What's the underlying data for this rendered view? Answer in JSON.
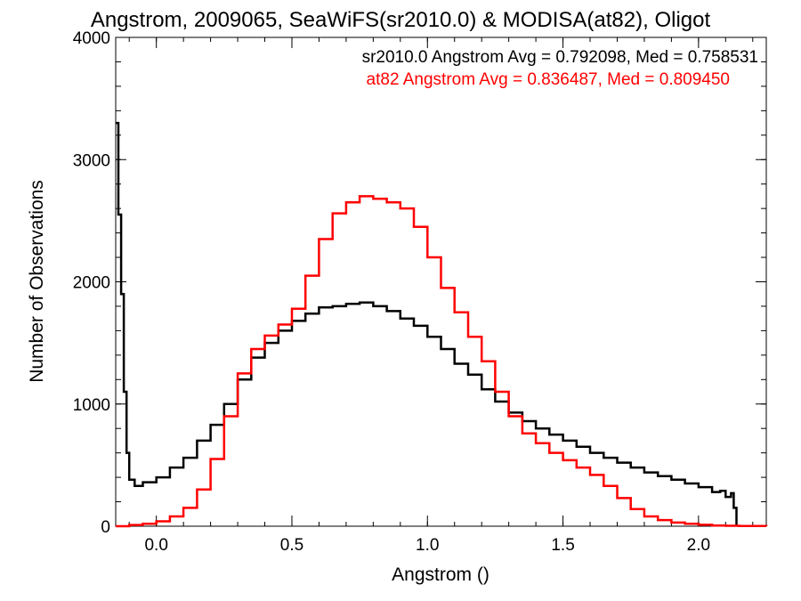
{
  "chart_data": {
    "type": "line",
    "title": "Angstrom, 2009065, SeaWiFS(sr2010.0) & MODISA(at82), Oligot",
    "xlabel": "Angstrom ()",
    "ylabel": "Number of Observations",
    "xlim": [
      -0.15,
      2.25
    ],
    "ylim": [
      0,
      4000
    ],
    "x_ticks": [
      {
        "value": 0.0,
        "label": "0.0"
      },
      {
        "value": 0.5,
        "label": "0.5"
      },
      {
        "value": 1.0,
        "label": "1.0"
      },
      {
        "value": 1.5,
        "label": "1.5"
      },
      {
        "value": 2.0,
        "label": "2.0"
      }
    ],
    "y_ticks": [
      {
        "value": 0,
        "label": "0"
      },
      {
        "value": 1000,
        "label": "1000"
      },
      {
        "value": 2000,
        "label": "2000"
      },
      {
        "value": 3000,
        "label": "3000"
      },
      {
        "value": 4000,
        "label": "4000"
      }
    ],
    "annotations": [
      {
        "text": "sr2010.0 Angstrom Avg = 0.792098, Med = 0.758531",
        "color": "#000000"
      },
      {
        "text": "at82 Angstrom Avg = 0.836487, Med = 0.809450",
        "color": "#ff0000"
      }
    ],
    "grid": false,
    "series": [
      {
        "color": "#000000",
        "x": [
          -0.15,
          -0.14,
          -0.13,
          -0.12,
          -0.11,
          -0.1,
          -0.08,
          -0.05,
          0.0,
          0.05,
          0.1,
          0.15,
          0.2,
          0.25,
          0.3,
          0.35,
          0.4,
          0.45,
          0.5,
          0.55,
          0.6,
          0.65,
          0.7,
          0.75,
          0.8,
          0.85,
          0.9,
          0.95,
          1.0,
          1.05,
          1.1,
          1.15,
          1.2,
          1.25,
          1.3,
          1.35,
          1.4,
          1.45,
          1.5,
          1.55,
          1.6,
          1.65,
          1.7,
          1.75,
          1.8,
          1.85,
          1.9,
          1.95,
          2.0,
          2.05,
          2.08,
          2.1,
          2.12,
          2.13,
          2.14
        ],
        "y": [
          3300,
          2550,
          1900,
          1100,
          600,
          380,
          330,
          360,
          400,
          480,
          560,
          700,
          830,
          1000,
          1200,
          1380,
          1500,
          1600,
          1680,
          1740,
          1790,
          1800,
          1820,
          1830,
          1800,
          1760,
          1700,
          1640,
          1550,
          1450,
          1330,
          1240,
          1120,
          1020,
          930,
          860,
          800,
          750,
          700,
          650,
          600,
          560,
          520,
          480,
          440,
          410,
          380,
          350,
          320,
          280,
          290,
          240,
          270,
          150,
          0
        ]
      },
      {
        "color": "#ff0000",
        "x": [
          -0.15,
          -0.1,
          -0.05,
          0.0,
          0.05,
          0.1,
          0.15,
          0.2,
          0.25,
          0.3,
          0.35,
          0.4,
          0.45,
          0.5,
          0.55,
          0.6,
          0.65,
          0.7,
          0.75,
          0.8,
          0.85,
          0.9,
          0.95,
          1.0,
          1.05,
          1.1,
          1.15,
          1.2,
          1.25,
          1.3,
          1.35,
          1.4,
          1.45,
          1.5,
          1.55,
          1.6,
          1.65,
          1.7,
          1.75,
          1.8,
          1.85,
          1.9,
          1.95,
          2.0,
          2.05,
          2.1,
          2.15,
          2.25
        ],
        "y": [
          0,
          10,
          20,
          40,
          80,
          150,
          300,
          550,
          900,
          1250,
          1450,
          1560,
          1650,
          1780,
          2050,
          2350,
          2560,
          2650,
          2700,
          2680,
          2650,
          2600,
          2450,
          2200,
          1950,
          1750,
          1550,
          1350,
          1100,
          900,
          760,
          680,
          600,
          540,
          480,
          420,
          330,
          230,
          140,
          80,
          50,
          30,
          20,
          12,
          6,
          4,
          2,
          0
        ]
      }
    ]
  }
}
